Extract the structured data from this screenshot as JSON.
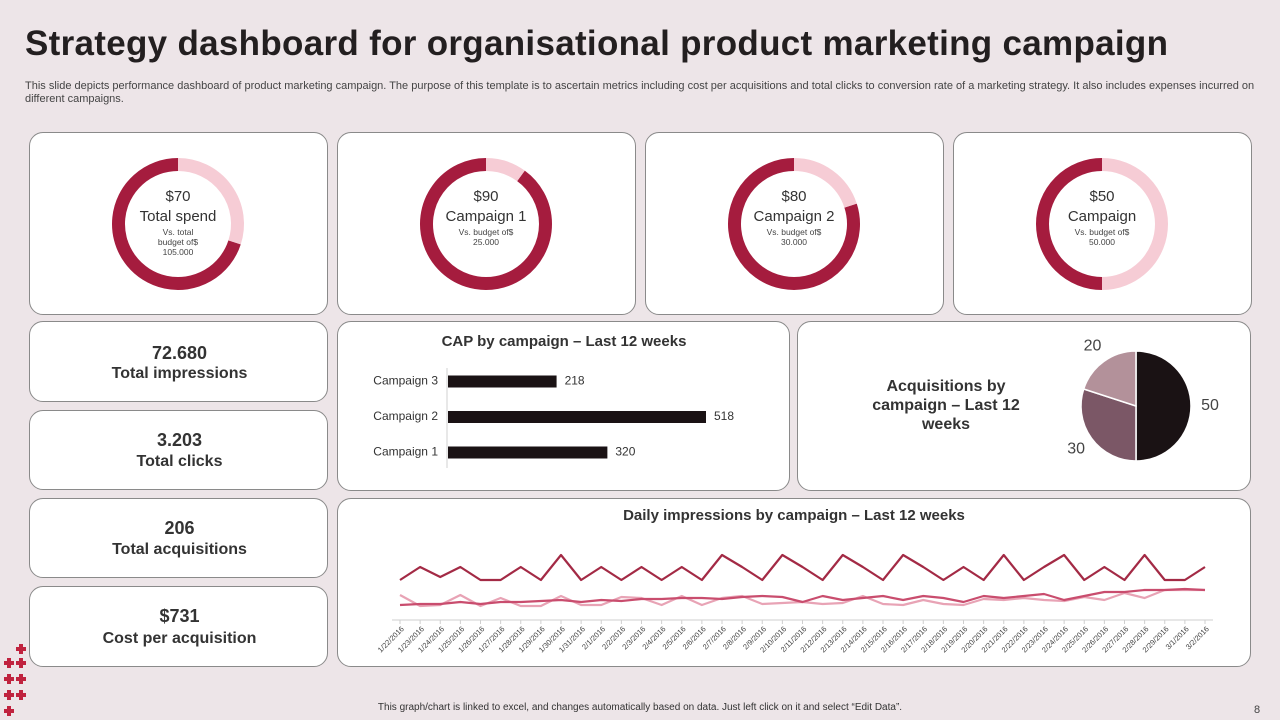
{
  "title": "Strategy dashboard for organisational product marketing campaign",
  "subtitle": "This slide depicts performance dashboard of product marketing campaign. The purpose of this template is to ascertain metrics including cost per acquisitions and total clicks to conversion rate of a marketing strategy. It also includes expenses incurred on different campaigns.",
  "kpis": [
    {
      "value": "72.680",
      "label": "Total impressions"
    },
    {
      "value": "3.203",
      "label": "Total clicks"
    },
    {
      "value": "206",
      "label": "Total acquisitions"
    },
    {
      "value": "$731",
      "label": "Cost per acquisition"
    }
  ],
  "chart_data": [
    {
      "type": "donut",
      "title": "Total spend",
      "note": "Vs. total budget of$ 105.000",
      "values": [
        70,
        30
      ],
      "value_labels": [
        "$70",
        null
      ],
      "colors": [
        "#a51c3e",
        "#f6ccd5"
      ]
    },
    {
      "type": "donut",
      "title": "Campaign 1",
      "note": "Vs. budget of$ 25.000",
      "values": [
        90,
        10
      ],
      "value_labels": [
        "$90",
        null
      ],
      "colors": [
        "#a51c3e",
        "#f6ccd5"
      ]
    },
    {
      "type": "donut",
      "title": "Campaign 2",
      "note": "Vs. budget of$ 30.000",
      "values": [
        80,
        20
      ],
      "value_labels": [
        "$80",
        null
      ],
      "colors": [
        "#a51c3e",
        "#f6ccd5"
      ]
    },
    {
      "type": "donut",
      "title": "Campaign",
      "note": "Vs. budget of$ 50.000",
      "values": [
        50,
        50
      ],
      "value_labels": [
        "$50",
        null
      ],
      "colors": [
        "#a51c3e",
        "#f6ccd5"
      ]
    },
    {
      "type": "bar",
      "orientation": "horizontal",
      "title": "CAP by campaign – Last 12 weeks",
      "categories": [
        "Campaign 3",
        "Campaign 2",
        "Campaign 1"
      ],
      "values": [
        218,
        518,
        320
      ],
      "color": "#1a1214"
    },
    {
      "type": "pie",
      "title": "Acquisitions by campaign – Last 12 weeks",
      "values": [
        50,
        30,
        20
      ],
      "colors": [
        "#1a1214",
        "#7b5766",
        "#b3919a"
      ]
    },
    {
      "type": "line",
      "title": "Daily impressions by campaign – Last 12 weeks",
      "x": [
        "1/22/2016",
        "1/23/2016",
        "1/24/2016",
        "1/25/2016",
        "1/26/2016",
        "1/27/2016",
        "1/28/2016",
        "1/29/2016",
        "1/30/2016",
        "1/31/2016",
        "2/1/2016",
        "2/2/2016",
        "2/3/2016",
        "2/4/2016",
        "2/5/2016",
        "2/6/2016",
        "2/7/2016",
        "2/8/2016",
        "2/9/2016",
        "2/10/2016",
        "2/11/2016",
        "2/12/2016",
        "2/13/2016",
        "2/14/2016",
        "2/15/2016",
        "2/16/2016",
        "2/17/2016",
        "2/18/2016",
        "2/19/2016",
        "2/20/2016",
        "2/21/2016",
        "2/22/2016",
        "2/23/2016",
        "2/24/2016",
        "2/25/2016",
        "2/26/2016",
        "2/27/2016",
        "2/28/2016",
        "2/29/2016",
        "3/1/2016",
        "3/2/2016"
      ],
      "series": [
        {
          "color": "#a32a45",
          "values": [
            40,
            53,
            43,
            53,
            40,
            40,
            53,
            40,
            65,
            40,
            53,
            40,
            53,
            40,
            53,
            40,
            65,
            53,
            40,
            65,
            53,
            40,
            65,
            53,
            40,
            65,
            53,
            40,
            53,
            40,
            65,
            40,
            53,
            65,
            40,
            53,
            40,
            65,
            40,
            40,
            53
          ]
        },
        {
          "color": "#c94d6e",
          "values": [
            15,
            16,
            16,
            18,
            16,
            18,
            18,
            19,
            20,
            18,
            20,
            19,
            21,
            21,
            22,
            22,
            21,
            23,
            24,
            23,
            18,
            24,
            20,
            22,
            24,
            20,
            24,
            22,
            18,
            24,
            22,
            24,
            26,
            20,
            24,
            28,
            28,
            30,
            30,
            31,
            30
          ]
        },
        {
          "color": "#e8a3b5",
          "values": [
            25,
            14,
            15,
            25,
            14,
            22,
            14,
            14,
            24,
            15,
            15,
            23,
            22,
            15,
            24,
            15,
            22,
            24,
            16,
            17,
            18,
            16,
            17,
            24,
            16,
            15,
            20,
            16,
            15,
            21,
            20,
            22,
            20,
            19,
            23,
            20,
            27,
            22,
            30,
            30,
            30
          ]
        }
      ]
    }
  ],
  "footer": "This graph/chart is linked to excel, and changes automatically based on data. Just left click on it and select “Edit Data”.",
  "page_number": "8"
}
